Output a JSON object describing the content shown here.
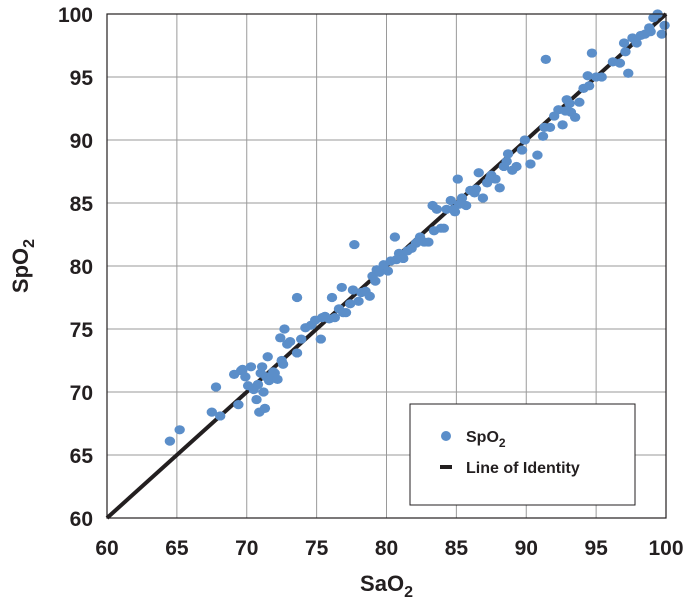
{
  "chart_data": {
    "type": "scatter",
    "xlabel": "SaO",
    "xlabel_sub": "2",
    "ylabel": "SpO",
    "ylabel_sub": "2",
    "xlim": [
      60,
      100
    ],
    "ylim": [
      60,
      100
    ],
    "xticks": [
      "60",
      "65",
      "70",
      "75",
      "80",
      "85",
      "90",
      "95",
      "100"
    ],
    "yticks": [
      "60",
      "65",
      "70",
      "75",
      "80",
      "85",
      "90",
      "95",
      "100"
    ],
    "grid": true,
    "legend_position": "bottom-right",
    "colors": {
      "points": "#5b8ec9",
      "line": "#231f20"
    },
    "series": [
      {
        "name": "SpO",
        "name_sub": "2",
        "kind": "points",
        "x": [
          64.5,
          65.2,
          67.5,
          67.8,
          68.1,
          69.1,
          69.4,
          69.6,
          69.9,
          70.1,
          70.3,
          70.5,
          70.7,
          70.9,
          71.0,
          71.1,
          71.2,
          71.3,
          71.4,
          71.5,
          71.6,
          71.8,
          72.0,
          72.2,
          72.4,
          72.5,
          72.7,
          72.9,
          73.1,
          73.6,
          73.9,
          74.2,
          74.6,
          74.9,
          75.3,
          75.6,
          75.9,
          76.1,
          76.3,
          76.6,
          76.8,
          77.1,
          77.4,
          77.7,
          78.0,
          78.2,
          78.5,
          78.8,
          79.0,
          79.3,
          79.5,
          79.8,
          80.1,
          80.3,
          80.6,
          80.9,
          81.2,
          81.5,
          81.8,
          82.1,
          82.4,
          82.7,
          83.0,
          83.3,
          83.6,
          83.9,
          84.1,
          84.3,
          84.6,
          84.9,
          85.1,
          85.4,
          85.7,
          86.0,
          86.3,
          86.6,
          86.9,
          87.2,
          87.5,
          87.8,
          88.1,
          88.4,
          88.7,
          89.0,
          89.3,
          89.7,
          90.3,
          90.8,
          91.2,
          91.4,
          91.7,
          92.0,
          92.3,
          92.6,
          92.9,
          93.2,
          93.5,
          93.8,
          94.1,
          94.4,
          94.7,
          95.0,
          96.2,
          96.7,
          97.0,
          97.3,
          97.6,
          97.9,
          98.2,
          98.5,
          98.8,
          99.1,
          99.4,
          99.7,
          99.9,
          70.8,
          71.9,
          73.6,
          75.4,
          77.6,
          80.7,
          83.4,
          85.2,
          86.4,
          88.6,
          91.3,
          93.1,
          94.5,
          97.1,
          98.9,
          69.7,
          72.6,
          76.9,
          79.2,
          82.2,
          84.8,
          87.4,
          89.9,
          92.8,
          95.4
        ],
        "y": [
          66.1,
          67.0,
          68.4,
          70.4,
          68.1,
          71.4,
          69.0,
          71.7,
          71.2,
          70.5,
          72.0,
          70.2,
          69.4,
          68.4,
          71.5,
          72.0,
          70.0,
          68.7,
          71.2,
          72.8,
          70.9,
          71.2,
          71.5,
          71.0,
          74.3,
          72.5,
          75.0,
          73.8,
          74.0,
          77.5,
          74.2,
          75.1,
          75.3,
          75.7,
          74.2,
          76.0,
          75.8,
          77.5,
          75.9,
          76.6,
          78.3,
          76.3,
          77.0,
          81.7,
          77.2,
          77.9,
          78.0,
          77.6,
          79.2,
          79.7,
          79.5,
          80.1,
          79.6,
          80.4,
          82.3,
          81.0,
          80.6,
          81.2,
          81.4,
          81.8,
          82.3,
          81.9,
          81.9,
          84.8,
          84.5,
          83.0,
          83.0,
          84.5,
          85.2,
          84.3,
          86.9,
          85.4,
          84.8,
          86.0,
          85.8,
          87.4,
          85.4,
          86.6,
          87.2,
          86.9,
          86.2,
          87.9,
          88.9,
          87.6,
          87.9,
          89.2,
          88.1,
          88.8,
          90.3,
          96.4,
          91.0,
          91.9,
          92.4,
          91.2,
          93.2,
          92.2,
          91.8,
          93.0,
          94.1,
          95.1,
          96.9,
          95.0,
          96.2,
          96.1,
          97.7,
          95.3,
          98.1,
          97.7,
          98.3,
          98.4,
          98.9,
          99.7,
          100.0,
          98.4,
          99.1,
          70.6,
          71.6,
          73.1,
          75.9,
          78.1,
          80.5,
          82.8,
          84.9,
          86.1,
          88.3,
          91.0,
          92.9,
          94.3,
          97.0,
          98.6,
          71.8,
          72.2,
          76.3,
          78.8,
          81.9,
          84.5,
          86.9,
          90.0,
          92.3,
          95.0
        ]
      },
      {
        "name": "Line of Identity",
        "kind": "line",
        "x": [
          60,
          100
        ],
        "y": [
          60,
          100
        ]
      }
    ]
  }
}
